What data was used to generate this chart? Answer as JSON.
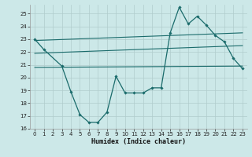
{
  "bg_color": "#cce8e8",
  "grid_color": "#b0cccc",
  "line_color": "#1a6b6b",
  "xlabel": "Humidex (Indice chaleur)",
  "xlim": [
    -0.5,
    23.5
  ],
  "ylim": [
    16,
    25.7
  ],
  "yticks": [
    16,
    17,
    18,
    19,
    20,
    21,
    22,
    23,
    24,
    25
  ],
  "xticks": [
    0,
    1,
    2,
    3,
    4,
    5,
    6,
    7,
    8,
    9,
    10,
    11,
    12,
    13,
    14,
    15,
    16,
    17,
    18,
    19,
    20,
    21,
    22,
    23
  ],
  "curve1_x": [
    0,
    1,
    3,
    4,
    5,
    6,
    7,
    8,
    9,
    10,
    11,
    12,
    13,
    14,
    15,
    16,
    17,
    18,
    19,
    20,
    21,
    22,
    23
  ],
  "curve1_y": [
    23.0,
    22.2,
    20.9,
    18.9,
    17.1,
    16.5,
    16.5,
    17.3,
    20.1,
    18.8,
    18.8,
    18.8,
    19.2,
    19.2,
    23.5,
    25.5,
    24.2,
    24.8,
    24.1,
    23.3,
    22.8,
    21.5,
    20.7
  ],
  "curve2_x": [
    0,
    23
  ],
  "curve2_y": [
    22.9,
    23.5
  ],
  "curve3_x": [
    0,
    23
  ],
  "curve3_y": [
    21.9,
    22.5
  ],
  "curve4_x": [
    0,
    23
  ],
  "curve4_y": [
    20.8,
    20.9
  ],
  "xlabel_fontsize": 6,
  "tick_fontsize": 5.0
}
